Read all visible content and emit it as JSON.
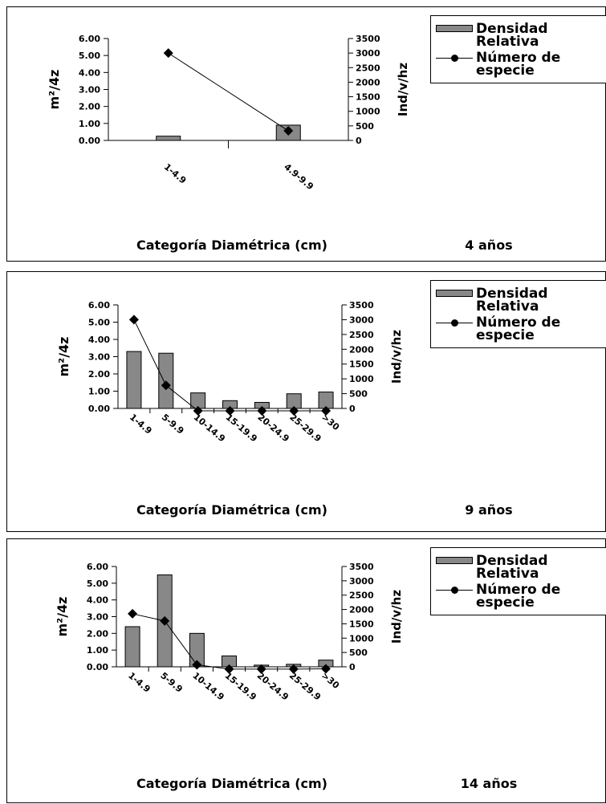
{
  "legend": {
    "bar_label": "Densidad Relativa",
    "line_label": "Número de especie"
  },
  "colors": {
    "bar": "#888888",
    "line": "#000000",
    "marker": "#000000"
  },
  "chart_data": [
    {
      "type": "bar",
      "title": "4 años",
      "xlabel": "Categoría Diamétrica (cm)",
      "ylabel": "m²/4z",
      "y2label": "Ind/v/hz",
      "categories": [
        "1-4.9",
        "4.9-9.9"
      ],
      "ylim": [
        0,
        6
      ],
      "y_ticks": [
        "6.00",
        "5.00",
        "4.00",
        "3.00",
        "2.00",
        "1.00",
        "0.00"
      ],
      "y2lim": [
        0,
        3500
      ],
      "y2_ticks": [
        "3500",
        "3000",
        "2500",
        "2000",
        "1500",
        "1000",
        "500",
        "0"
      ],
      "series": [
        {
          "name": "Densidad Relativa",
          "type": "bar",
          "axis": "left",
          "values": [
            0.25,
            0.9
          ]
        },
        {
          "name": "Número de especie",
          "type": "line",
          "axis": "right",
          "values": [
            3000,
            330
          ]
        }
      ],
      "legend_position": "top-right"
    },
    {
      "type": "bar",
      "title": "9 años",
      "xlabel": "Categoría Diamétrica (cm)",
      "ylabel": "m²/4z",
      "y2label": "Ind/v/hz",
      "categories": [
        "1-4.9",
        "5-9.9",
        "10-14.9",
        "15-19.9",
        "20-24.9",
        "25-29.9",
        ">30"
      ],
      "ylim": [
        0,
        6
      ],
      "y_ticks": [
        "6.00",
        "5.00",
        "4.00",
        "3.00",
        "2.00",
        "1.00",
        "0.00"
      ],
      "y2lim": [
        0,
        3500
      ],
      "y2_ticks": [
        "3500",
        "3000",
        "2500",
        "2000",
        "1500",
        "1000",
        "500",
        "0"
      ],
      "series": [
        {
          "name": "Densidad Relativa",
          "type": "bar",
          "axis": "left",
          "values": [
            3.3,
            3.2,
            0.9,
            0.45,
            0.35,
            0.85,
            0.95
          ]
        },
        {
          "name": "Número de especie",
          "type": "line",
          "axis": "right",
          "values": [
            3000,
            780,
            -80,
            -80,
            -80,
            -80,
            -80
          ]
        }
      ],
      "legend_position": "top-right"
    },
    {
      "type": "bar",
      "title": "14 años",
      "xlabel": "Categoría Diamétrica (cm)",
      "ylabel": "m²/4z",
      "y2label": "Ind/v/hz",
      "categories": [
        "1-4.9",
        "5-9.9",
        "10-14.9",
        "15-19.9",
        "20-24.9",
        "25-29.9",
        ">30"
      ],
      "ylim": [
        0,
        6
      ],
      "y_ticks": [
        "6.00",
        "5.00",
        "4.00",
        "3.00",
        "2.00",
        "1.00",
        "0.00"
      ],
      "y2lim": [
        0,
        3500
      ],
      "y2_ticks": [
        "3500",
        "3000",
        "2500",
        "2000",
        "1500",
        "1000",
        "500",
        "0"
      ],
      "series": [
        {
          "name": "Densidad Relativa",
          "type": "bar",
          "axis": "left",
          "values": [
            2.4,
            5.5,
            2.0,
            0.65,
            0.1,
            0.15,
            0.4
          ]
        },
        {
          "name": "Número de especie",
          "type": "line",
          "axis": "right",
          "values": [
            1850,
            1600,
            70,
            -80,
            -80,
            -80,
            -70
          ]
        }
      ],
      "legend_position": "top-right"
    }
  ]
}
